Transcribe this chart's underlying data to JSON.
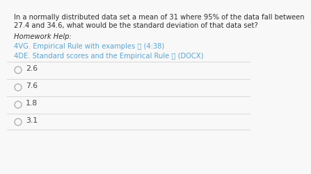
{
  "background_color": "#f8f8f8",
  "question_text_line1": "In a normally distributed data set a mean of 31 where 95% of the data fall between",
  "question_text_line2": "27.4 and 34.6, what would be the standard deviation of that data set?",
  "homework_label": "Homework Help:",
  "link1": "4VG. Empirical Rule with examples ⦺ (4:38)",
  "link2": "4DE. Standard scores and the Empirical Rule ⦺ (DOCX)",
  "options": [
    "2.6",
    "7.6",
    "1.8",
    "3.1"
  ],
  "text_color": "#2e2e2e",
  "link_color": "#5ba4cf",
  "option_text_color": "#444444",
  "divider_color": "#d8d8d8",
  "circle_edge_color": "#aaaaaa",
  "question_fontsize": 7.2,
  "homework_fontsize": 7.2,
  "link_fontsize": 7.2,
  "option_fontsize": 7.8
}
